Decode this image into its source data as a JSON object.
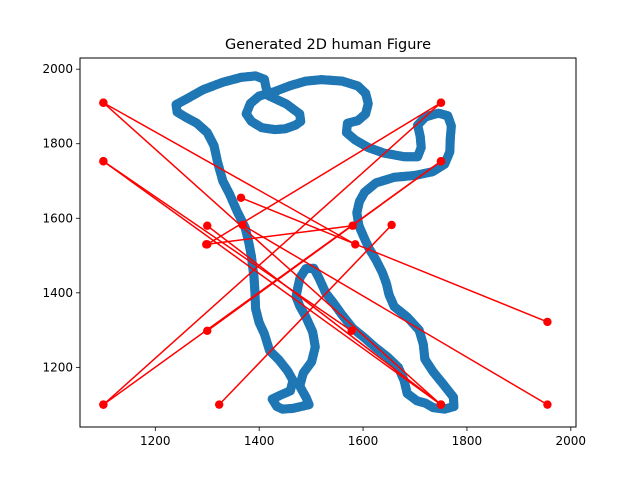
{
  "chart_data": {
    "type": "scatter",
    "title": "Generated 2D human Figure",
    "xlabel": "",
    "ylabel": "",
    "xlim": [
      1055,
      2010
    ],
    "ylim": [
      1040,
      2030
    ],
    "xticks": [
      1200,
      1400,
      1600,
      1800,
      2000
    ],
    "xtick_labels": [
      "1200",
      "1400",
      "1600",
      "1800",
      "2000"
    ],
    "yticks": [
      1200,
      1400,
      1600,
      1800,
      2000
    ],
    "ytick_labels": [
      "1200",
      "1400",
      "1600",
      "1800",
      "2000"
    ],
    "grid": false,
    "series": [
      {
        "kind": "scatter_outline",
        "color": "#1f77b4",
        "points": [
          [
            1434,
            1095
          ],
          [
            1425,
            1115
          ],
          [
            1440,
            1125
          ],
          [
            1460,
            1137
          ],
          [
            1465,
            1165
          ],
          [
            1455,
            1190
          ],
          [
            1438,
            1220
          ],
          [
            1420,
            1245
          ],
          [
            1410,
            1290
          ],
          [
            1400,
            1320
          ],
          [
            1393,
            1358
          ],
          [
            1392,
            1398
          ],
          [
            1390,
            1442
          ],
          [
            1385,
            1498
          ],
          [
            1380,
            1535
          ],
          [
            1373,
            1575
          ],
          [
            1357,
            1620
          ],
          [
            1343,
            1665
          ],
          [
            1330,
            1700
          ],
          [
            1320,
            1750
          ],
          [
            1313,
            1795
          ],
          [
            1300,
            1830
          ],
          [
            1280,
            1855
          ],
          [
            1260,
            1870
          ],
          [
            1242,
            1885
          ],
          [
            1240,
            1905
          ],
          [
            1260,
            1920
          ],
          [
            1292,
            1945
          ],
          [
            1330,
            1965
          ],
          [
            1365,
            1978
          ],
          [
            1393,
            1982
          ],
          [
            1410,
            1973
          ],
          [
            1413,
            1952
          ],
          [
            1418,
            1929
          ],
          [
            1452,
            1907
          ],
          [
            1478,
            1880
          ],
          [
            1480,
            1860
          ],
          [
            1470,
            1850
          ],
          [
            1450,
            1840
          ],
          [
            1430,
            1838
          ],
          [
            1405,
            1843
          ],
          [
            1385,
            1860
          ],
          [
            1375,
            1880
          ],
          [
            1383,
            1908
          ],
          [
            1400,
            1928
          ],
          [
            1430,
            1940
          ],
          [
            1460,
            1956
          ],
          [
            1490,
            1968
          ],
          [
            1520,
            1972
          ],
          [
            1560,
            1968
          ],
          [
            1590,
            1955
          ],
          [
            1605,
            1935
          ],
          [
            1610,
            1908
          ],
          [
            1605,
            1880
          ],
          [
            1590,
            1862
          ],
          [
            1570,
            1855
          ],
          [
            1568,
            1830
          ],
          [
            1585,
            1810
          ],
          [
            1610,
            1790
          ],
          [
            1640,
            1775
          ],
          [
            1680,
            1765
          ],
          [
            1705,
            1765
          ],
          [
            1712,
            1790
          ],
          [
            1710,
            1820
          ],
          [
            1705,
            1850
          ],
          [
            1720,
            1872
          ],
          [
            1745,
            1882
          ],
          [
            1763,
            1875
          ],
          [
            1770,
            1848
          ],
          [
            1768,
            1815
          ],
          [
            1767,
            1778
          ],
          [
            1757,
            1745
          ],
          [
            1734,
            1725
          ],
          [
            1700,
            1715
          ],
          [
            1660,
            1710
          ],
          [
            1625,
            1695
          ],
          [
            1603,
            1670
          ],
          [
            1593,
            1645
          ],
          [
            1588,
            1615
          ],
          [
            1592,
            1580
          ],
          [
            1602,
            1548
          ],
          [
            1612,
            1518
          ],
          [
            1625,
            1488
          ],
          [
            1637,
            1455
          ],
          [
            1645,
            1425
          ],
          [
            1650,
            1395
          ],
          [
            1660,
            1363
          ],
          [
            1685,
            1335
          ],
          [
            1708,
            1300
          ],
          [
            1716,
            1262
          ],
          [
            1719,
            1222
          ],
          [
            1735,
            1188
          ],
          [
            1756,
            1152
          ],
          [
            1774,
            1120
          ],
          [
            1775,
            1095
          ],
          [
            1757,
            1088
          ],
          [
            1735,
            1092
          ],
          [
            1720,
            1104
          ],
          [
            1704,
            1110
          ],
          [
            1685,
            1130
          ],
          [
            1679,
            1165
          ],
          [
            1668,
            1200
          ],
          [
            1647,
            1228
          ],
          [
            1624,
            1253
          ],
          [
            1602,
            1280
          ],
          [
            1580,
            1305
          ],
          [
            1560,
            1340
          ],
          [
            1543,
            1373
          ],
          [
            1528,
            1400
          ],
          [
            1515,
            1440
          ],
          [
            1505,
            1466
          ],
          [
            1490,
            1465
          ],
          [
            1479,
            1442
          ],
          [
            1475,
            1418
          ],
          [
            1471,
            1390
          ],
          [
            1478,
            1365
          ],
          [
            1490,
            1335
          ],
          [
            1503,
            1295
          ],
          [
            1508,
            1255
          ],
          [
            1501,
            1215
          ],
          [
            1485,
            1185
          ],
          [
            1478,
            1150
          ],
          [
            1490,
            1120
          ],
          [
            1496,
            1100
          ],
          [
            1465,
            1090
          ],
          [
            1445,
            1088
          ]
        ]
      },
      {
        "kind": "segments",
        "color": "#ff0000",
        "segments": [
          [
            [
              1100,
              1910
            ],
            [
              1750,
              1100
            ]
          ],
          [
            [
              1100,
              1910
            ],
            [
              1585,
              1530
            ]
          ],
          [
            [
              1100,
              1753
            ],
            [
              1750,
              1100
            ]
          ],
          [
            [
              1100,
              1753
            ],
            [
              1578,
              1298
            ]
          ],
          [
            [
              1100,
              1100
            ],
            [
              1750,
              1910
            ]
          ],
          [
            [
              1100,
              1100
            ],
            [
              1750,
              1753
            ]
          ],
          [
            [
              1300,
              1580
            ],
            [
              1750,
              1100
            ]
          ],
          [
            [
              1300,
              1298
            ],
            [
              1750,
              1753
            ]
          ],
          [
            [
              1300,
              1530
            ],
            [
              1750,
              1910
            ]
          ],
          [
            [
              1298,
              1530
            ],
            [
              1580,
              1580
            ]
          ],
          [
            [
              1365,
              1655
            ],
            [
              1955,
              1322
            ]
          ],
          [
            [
              1368,
              1582
            ],
            [
              1955,
              1100
            ]
          ],
          [
            [
              1323,
              1100
            ],
            [
              1655,
              1582
            ]
          ]
        ]
      }
    ]
  }
}
